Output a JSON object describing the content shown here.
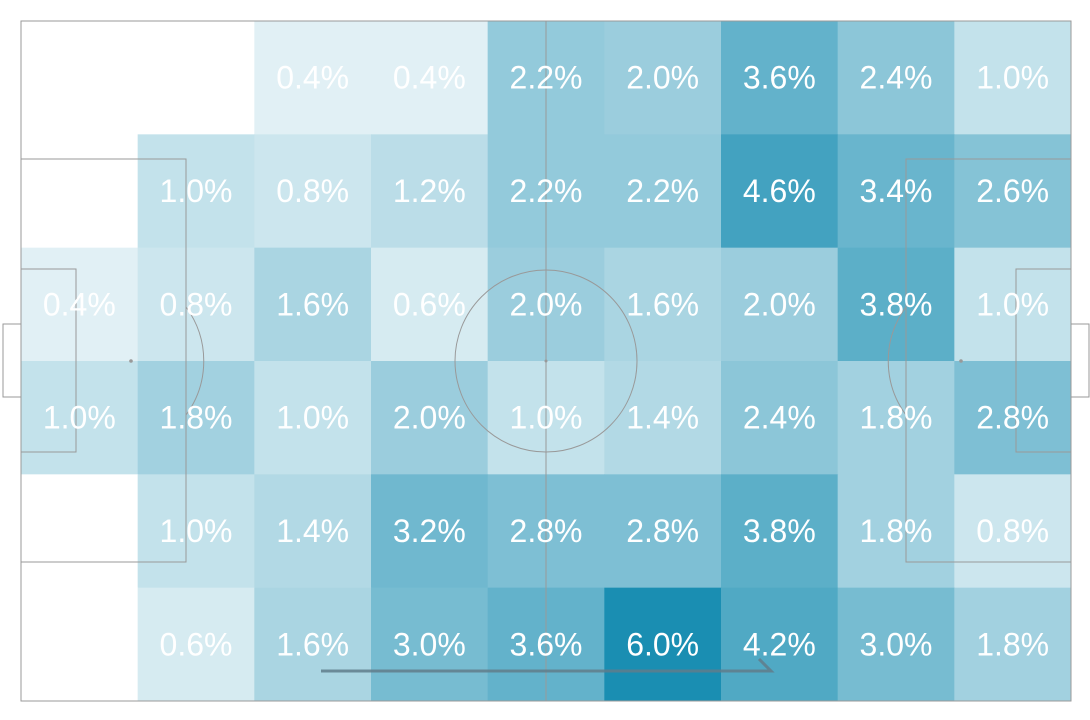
{
  "chart_data": {
    "type": "heatmap",
    "title": "",
    "unit": "%",
    "rows": 6,
    "cols": 9,
    "color_scale": {
      "low": "#ffffff",
      "high": "#1a8eb2"
    },
    "max_value": 6.0,
    "values": [
      [
        null,
        null,
        0.4,
        0.4,
        2.2,
        2.0,
        3.6,
        2.4,
        1.0
      ],
      [
        null,
        1.0,
        0.8,
        1.2,
        2.2,
        2.2,
        4.6,
        3.4,
        2.6
      ],
      [
        0.4,
        0.8,
        1.6,
        0.6,
        2.0,
        1.6,
        2.0,
        3.8,
        1.0
      ],
      [
        1.0,
        1.8,
        1.0,
        2.0,
        1.0,
        1.4,
        2.4,
        1.8,
        2.8
      ],
      [
        null,
        1.0,
        1.4,
        3.2,
        2.8,
        2.8,
        3.8,
        1.8,
        0.8
      ],
      [
        null,
        0.6,
        1.6,
        3.0,
        3.6,
        6.0,
        4.2,
        3.0,
        1.8
      ]
    ],
    "labels": [
      [
        "",
        "",
        "0.4%",
        "0.4%",
        "2.2%",
        "2.0%",
        "3.6%",
        "2.4%",
        "1.0%"
      ],
      [
        "",
        "1.0%",
        "0.8%",
        "1.2%",
        "2.2%",
        "2.2%",
        "4.6%",
        "3.4%",
        "2.6%"
      ],
      [
        "0.4%",
        "0.8%",
        "1.6%",
        "0.6%",
        "2.0%",
        "1.6%",
        "2.0%",
        "3.8%",
        "1.0%"
      ],
      [
        "1.0%",
        "1.8%",
        "1.0%",
        "2.0%",
        "1.0%",
        "1.4%",
        "2.4%",
        "1.8%",
        "2.8%"
      ],
      [
        "",
        "1.0%",
        "1.4%",
        "3.2%",
        "2.8%",
        "2.8%",
        "3.8%",
        "1.8%",
        "0.8%"
      ],
      [
        "",
        "0.6%",
        "1.6%",
        "3.0%",
        "3.6%",
        "6.0%",
        "4.2%",
        "3.0%",
        "1.8%"
      ]
    ],
    "direction_arrow": true,
    "colors": {
      "pitch_lines": "#999999",
      "arrow": "#607d8b",
      "labels": "#ffffff"
    }
  }
}
